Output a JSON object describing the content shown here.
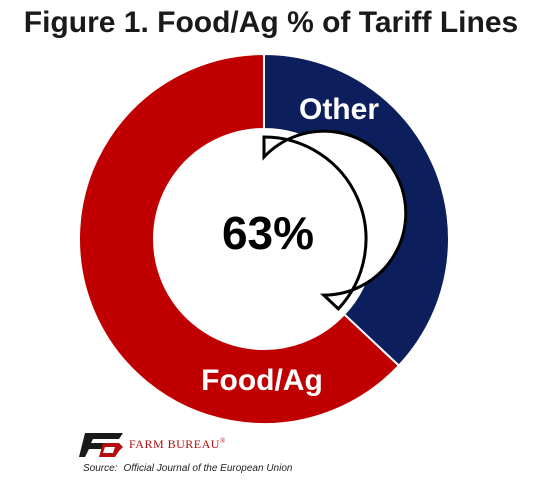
{
  "title": "Figure 1. Food/Ag % of Tariff Lines",
  "chart_data": {
    "type": "pie",
    "variant": "donut",
    "center_label": "63%",
    "slices": [
      {
        "label": "Other",
        "value": 37,
        "color": "#0c1f5c"
      },
      {
        "label": "Food/Ag",
        "value": 63,
        "color": "#c00000"
      }
    ],
    "center_border_color": "#000000",
    "background": "#ffffff"
  },
  "logo": {
    "text": "FARM BUREAU",
    "mark": "®"
  },
  "source": {
    "label": "Source:",
    "text": "Official Journal of the European Union"
  }
}
